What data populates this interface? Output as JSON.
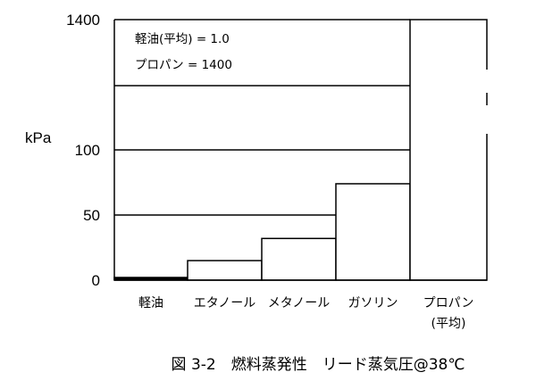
{
  "chart_data": {
    "type": "bar",
    "ylabel": "kPa",
    "y_axis": "broken",
    "yticks": [
      0,
      50,
      100,
      1400
    ],
    "categories": [
      "軽油",
      "エタノール",
      "メタノール",
      "ガソリン",
      "プロパン"
    ],
    "category_sublabels": [
      "",
      "",
      "",
      "",
      "(平均)"
    ],
    "values": [
      1.0,
      15,
      32,
      74,
      1400
    ],
    "annotations": [
      "軽油(平均) = 1.0",
      "プロパン = 1400"
    ],
    "gridlines": [
      50,
      100
    ],
    "bar_fill": "#ffffff",
    "bar_stroke": "#000000"
  },
  "caption": "図 3-2　燃料蒸発性　リード蒸気圧@38℃"
}
